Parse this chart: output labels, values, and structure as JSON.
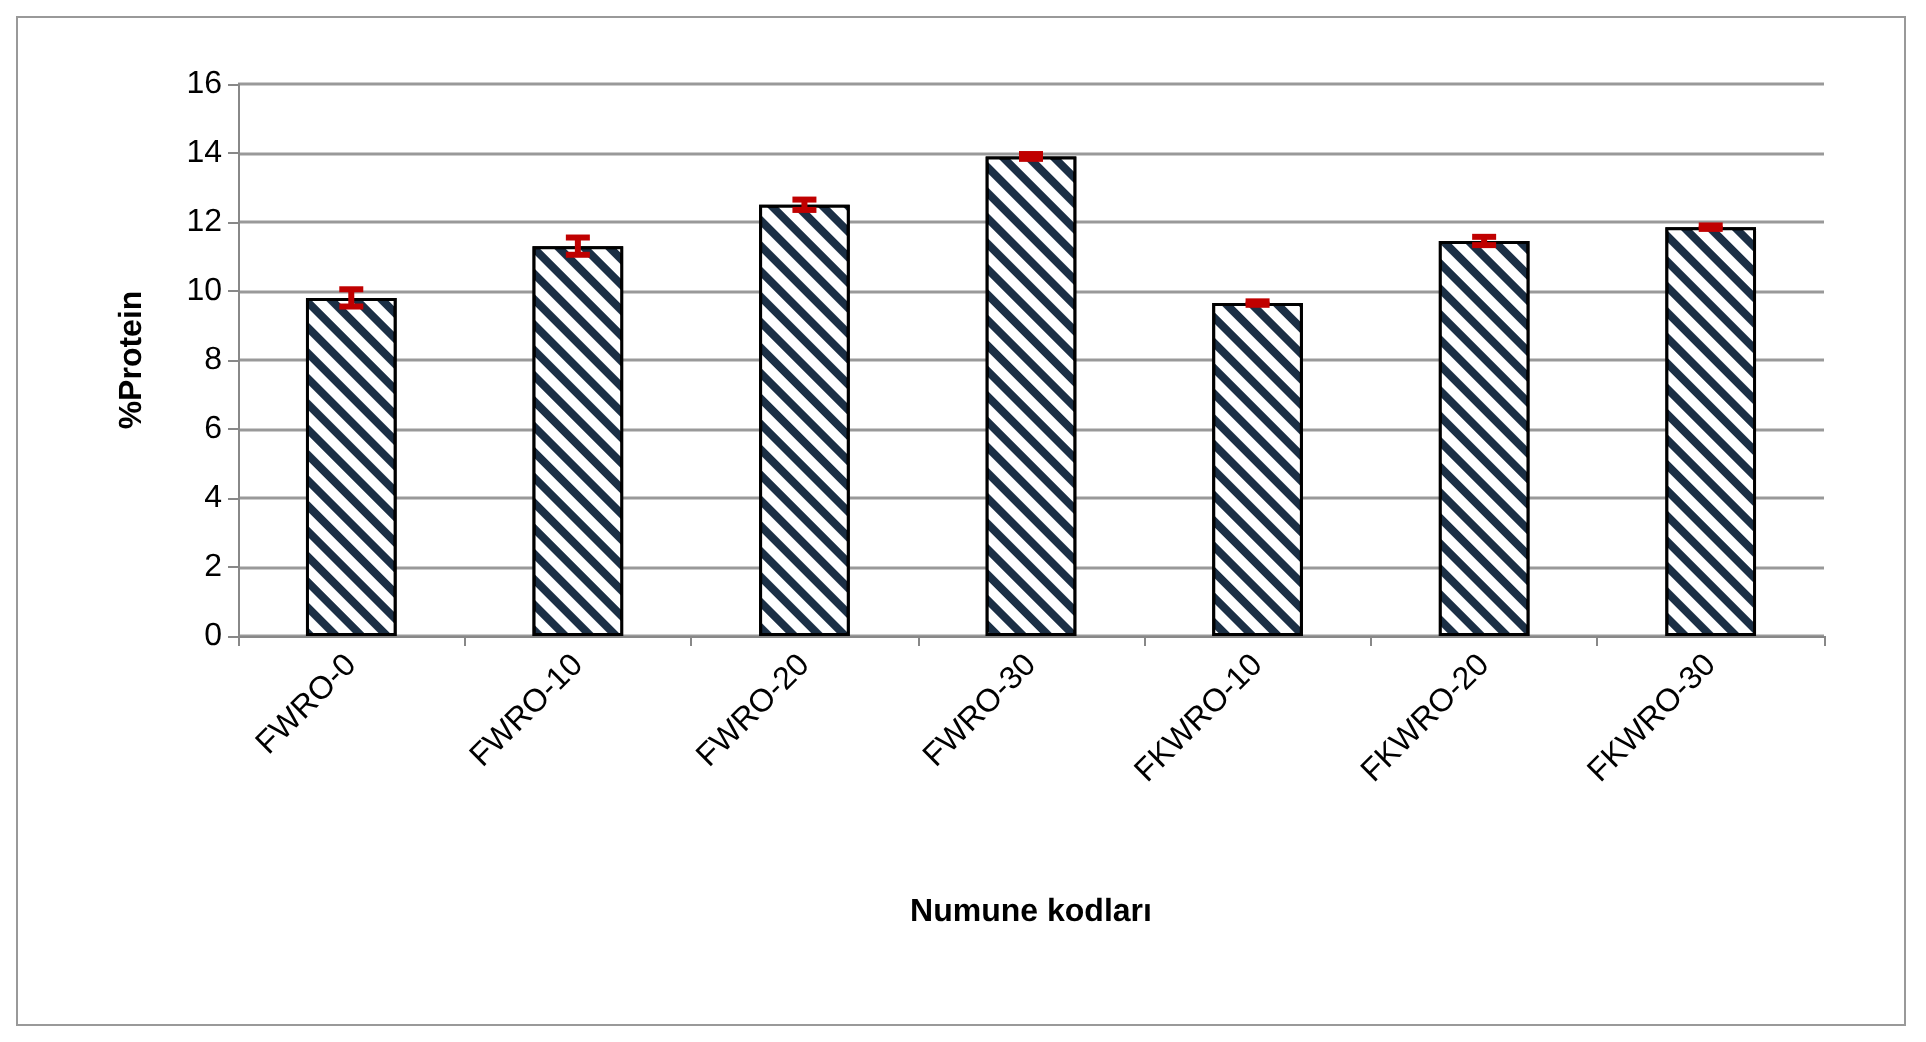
{
  "chart_data": {
    "type": "bar",
    "xlabel": "Numune kodları",
    "ylabel": "%Protein",
    "categories": [
      "FWRO-0",
      "FWRO-10",
      "FWRO-20",
      "FWRO-30",
      "FKWRO-10",
      "FKWRO-20",
      "FKWRO-30"
    ],
    "values": [
      9.8,
      11.3,
      12.5,
      13.9,
      9.65,
      11.45,
      11.85
    ],
    "errors": [
      0.25,
      0.25,
      0.15,
      0.07,
      0.05,
      0.12,
      0.05
    ],
    "color": "#1b2f45",
    "ylim": [
      0,
      16
    ],
    "yticks": [
      0,
      2,
      4,
      6,
      8,
      10,
      12,
      14,
      16
    ],
    "grid": "y"
  }
}
